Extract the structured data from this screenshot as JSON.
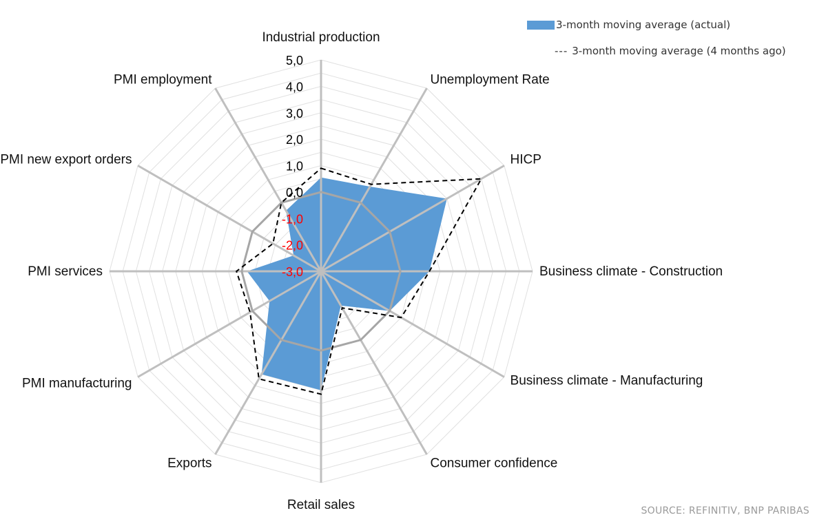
{
  "chart_data": {
    "type": "radar",
    "categories": [
      "Industrial production",
      "Unemployment Rate",
      "HICP",
      "Business climate - Construction",
      "Business climate - Manufacturing",
      "Consumer confidence",
      "Retail sales",
      "Exports",
      "PMI manufacturing",
      "PMI services",
      "PMI new export orders",
      "PMI employment"
    ],
    "series": [
      {
        "name": "3-month moving average (actual)",
        "style": "filled",
        "color": "#5b9bd5",
        "values": [
          0.55,
          0.7,
          2.5,
          1.1,
          0.0,
          -1.5,
          1.5,
          1.5,
          -0.75,
          -0.2,
          -1.8,
          -0.35
        ]
      },
      {
        "name": "3-month moving average (4 months ago)",
        "style": "dashed",
        "color": "#000000",
        "values": [
          0.9,
          0.8,
          4.0,
          1.1,
          0.5,
          -1.4,
          1.65,
          1.7,
          0.1,
          0.2,
          -0.9,
          0.0
        ]
      }
    ],
    "rlim": [
      -3,
      5
    ],
    "ticks": [
      "5,0",
      "4,0",
      "3,0",
      "2,0",
      "1,0",
      "0,0",
      "-1,0",
      "-2,0",
      "-3,0"
    ],
    "tick_values": [
      5,
      4,
      3,
      2,
      1,
      0,
      -1,
      -2,
      -3
    ],
    "negative_tick_color": "#ff0000",
    "grid": true,
    "legend": "top-right"
  },
  "legend": {
    "actual": "3-month moving average (actual)",
    "prior_dash": "---",
    "prior": "3-month moving average (4 months ago)"
  },
  "source": "SOURCE: REFINITIV, BNP PARIBAS"
}
